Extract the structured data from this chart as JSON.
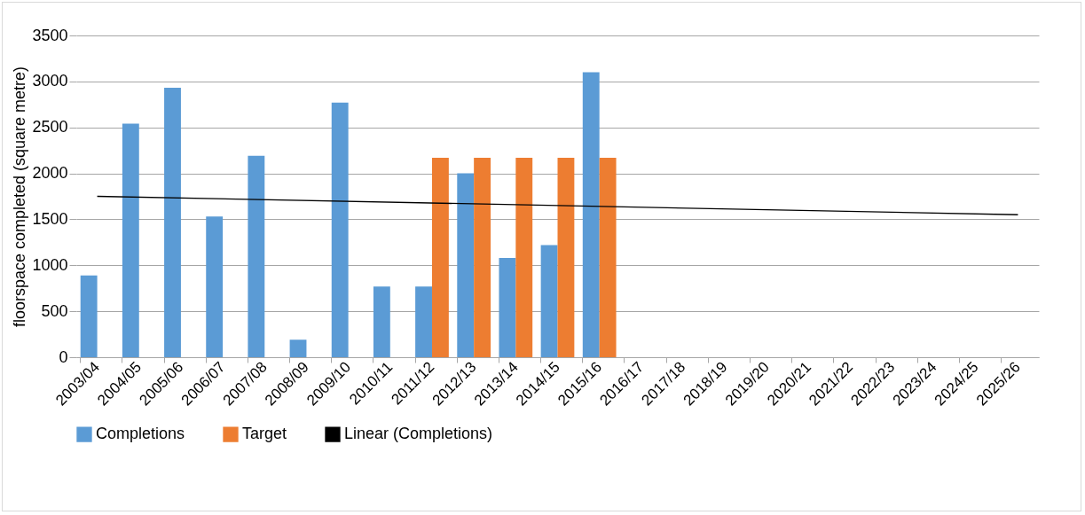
{
  "chart_data": {
    "type": "bar",
    "ylabel": "floorspace completed (square metre)",
    "categories": [
      "2003/04",
      "2004/05",
      "2005/06",
      "2006/07",
      "2007/08",
      "2008/09",
      "2009/10",
      "2010/11",
      "2011/12",
      "2012/13",
      "2013/14",
      "2014/15",
      "2015/16",
      "2016/17",
      "2017/18",
      "2018/19",
      "2019/20",
      "2020/21",
      "2021/22",
      "2022/23",
      "2023/24",
      "2024/25",
      "2025/26"
    ],
    "series": [
      {
        "name": "Completions",
        "color": "#5b9bd5",
        "values": [
          890,
          2540,
          2930,
          1530,
          2190,
          190,
          2770,
          770,
          770,
          2000,
          1080,
          1220,
          3100,
          null,
          null,
          null,
          null,
          null,
          null,
          null,
          null,
          null,
          null
        ]
      },
      {
        "name": "Target",
        "color": "#ed7d31",
        "values": [
          null,
          null,
          null,
          null,
          null,
          null,
          null,
          null,
          2170,
          2170,
          2170,
          2170,
          2170,
          null,
          null,
          null,
          null,
          null,
          null,
          null,
          null,
          null,
          null
        ]
      },
      {
        "name": "Linear (Completions)",
        "type": "line",
        "color": "#000000",
        "x": [
          "2003/04",
          "2025/26"
        ],
        "values": [
          1750,
          1550
        ]
      }
    ],
    "ylim": [
      0,
      3500
    ],
    "yticks": [
      0,
      500,
      1000,
      1500,
      2000,
      2500,
      3000,
      3500
    ],
    "grid": "y",
    "legend": "bottom"
  }
}
